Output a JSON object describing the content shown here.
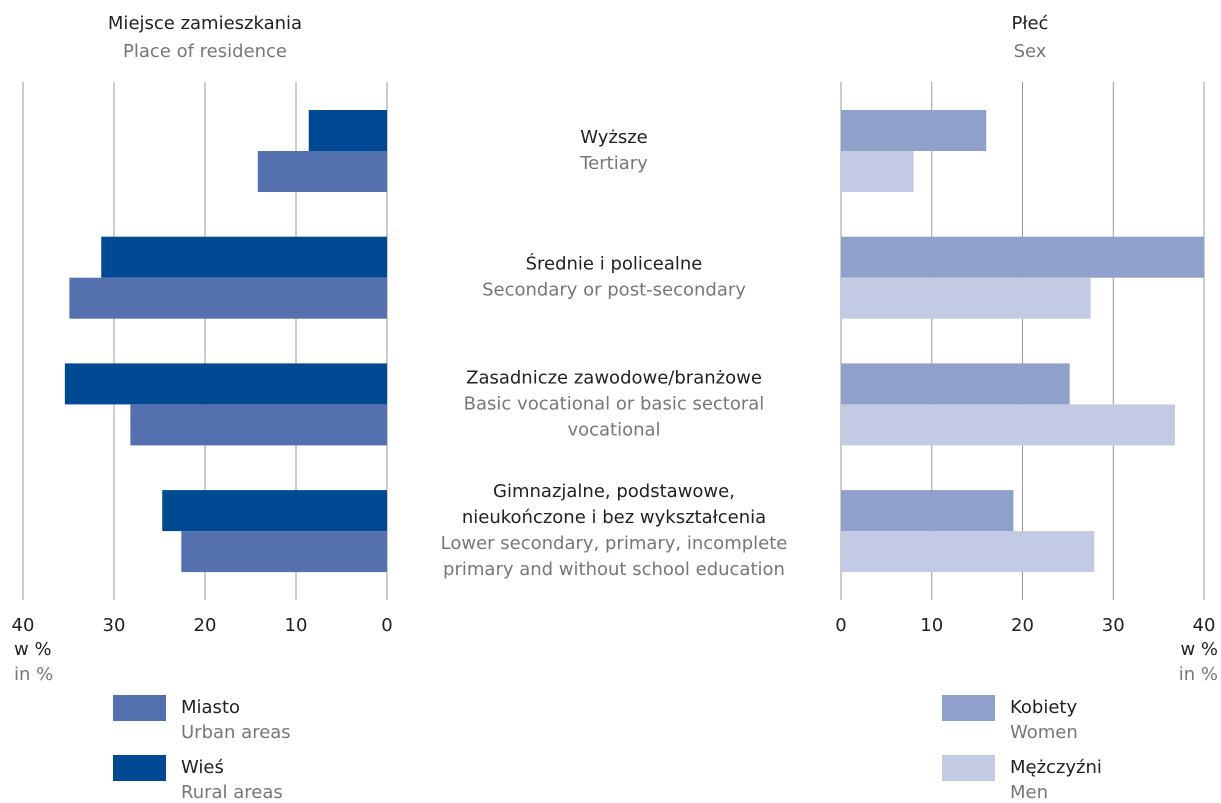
{
  "categories": [
    {
      "pl": [
        "Wyższe"
      ],
      "en": [
        "Tertiary"
      ]
    },
    {
      "pl": [
        "Średnie i policealne"
      ],
      "en": [
        "Secondary or post-secondary"
      ]
    },
    {
      "pl": [
        "Zasadnicze zawodowe/branżowe"
      ],
      "en": [
        "Basic vocational or basic sectoral",
        "vocational"
      ]
    },
    {
      "pl": [
        "Gimnazjalne, podstawowe,",
        "nieukończone i bez wykształcenia"
      ],
      "en": [
        "Lower secondary, primary, incomplete",
        "primary and without school education"
      ]
    }
  ],
  "chart_data": [
    {
      "type": "bar",
      "orientation": "horizontal",
      "x_reversed": true,
      "legend_reversed": true,
      "title": "Miejsce zamieszkania",
      "subtitle": "Place of residence",
      "axis_label": "w %",
      "axis_label_en": "in %",
      "xlim": [
        0,
        40
      ],
      "xticks": [
        0,
        10,
        20,
        30,
        40
      ],
      "grid": true,
      "series": [
        {
          "name": "Wieś",
          "name_en": "Rural areas",
          "color": "#004a93",
          "values": [
            8.6,
            31.4,
            35.4,
            24.7
          ]
        },
        {
          "name": "Miasto",
          "name_en": "Urban areas",
          "color": "#5470ae",
          "values": [
            14.2,
            34.9,
            28.2,
            22.6
          ]
        }
      ]
    },
    {
      "type": "bar",
      "orientation": "horizontal",
      "x_reversed": false,
      "legend_reversed": false,
      "title": "Płeć",
      "subtitle": "Sex",
      "axis_label": "w %",
      "axis_label_en": "in %",
      "xlim": [
        0,
        40
      ],
      "xticks": [
        0,
        10,
        20,
        30,
        40
      ],
      "grid": true,
      "series": [
        {
          "name": "Kobiety",
          "name_en": "Women",
          "color": "#8fa0cb",
          "values": [
            16.0,
            40.0,
            25.2,
            19.0
          ]
        },
        {
          "name": "Mężczyźni",
          "name_en": "Men",
          "color": "#c2cae4",
          "values": [
            8.0,
            27.5,
            36.8,
            27.9
          ]
        }
      ]
    }
  ]
}
